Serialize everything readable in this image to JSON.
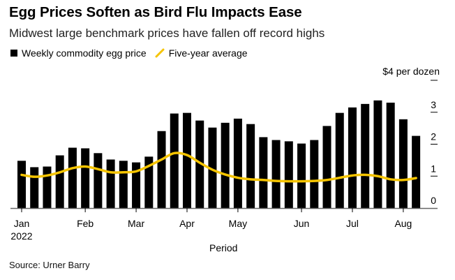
{
  "title": "Egg Prices Soften as Bird Flu Impacts Ease",
  "subtitle": "Midwest large benchmark prices have fallen off record highs",
  "legend": [
    {
      "label": "Weekly commodity egg price",
      "icon": "square-swatch",
      "color": "#000000"
    },
    {
      "label": "Five-year average",
      "icon": "line-swatch",
      "color": "#F5C400"
    }
  ],
  "unit_label": "$4 per dozen",
  "source": "Source: Urner Barry",
  "colors": {
    "bars": "#000000",
    "average_line": "#F5C400",
    "axis": "#666666"
  },
  "chart_data": {
    "type": "bar",
    "title": "Egg Prices Soften as Bird Flu Impacts Ease",
    "subtitle": "Midwest large benchmark prices have fallen off record highs",
    "xlabel": "Period",
    "ylabel": "$ per dozen",
    "ylim": [
      0,
      4
    ],
    "yticks": [
      0,
      1,
      2,
      3,
      4
    ],
    "ytick_labels": [
      "0",
      "1",
      "2",
      "3",
      "$4 per dozen"
    ],
    "x_ticks": [
      {
        "week_index": 0,
        "label": "Jan",
        "sublabel": "2022"
      },
      {
        "week_index": 5,
        "label": "Feb"
      },
      {
        "week_index": 9,
        "label": "Mar"
      },
      {
        "week_index": 13,
        "label": "Apr"
      },
      {
        "week_index": 17,
        "label": "May"
      },
      {
        "week_index": 22,
        "label": "Jun"
      },
      {
        "week_index": 26,
        "label": "Jul"
      },
      {
        "week_index": 30,
        "label": "Aug"
      }
    ],
    "grid": false,
    "legend_position": "top-left",
    "series": [
      {
        "name": "Weekly commodity egg price",
        "type": "bar",
        "values": [
          1.48,
          1.28,
          1.3,
          1.65,
          1.89,
          1.87,
          1.72,
          1.52,
          1.48,
          1.43,
          1.61,
          2.41,
          2.96,
          2.98,
          2.74,
          2.52,
          2.67,
          2.8,
          2.63,
          2.22,
          2.13,
          2.09,
          2.02,
          2.13,
          2.57,
          2.98,
          3.15,
          3.26,
          3.37,
          3.3,
          2.78,
          2.26
        ]
      },
      {
        "name": "Five-year average",
        "type": "line",
        "values": [
          1.04,
          0.98,
          1.02,
          1.12,
          1.25,
          1.3,
          1.22,
          1.12,
          1.12,
          1.15,
          1.32,
          1.52,
          1.72,
          1.66,
          1.42,
          1.2,
          1.05,
          0.95,
          0.9,
          0.88,
          0.85,
          0.84,
          0.84,
          0.85,
          0.88,
          0.95,
          1.02,
          1.04,
          1.0,
          0.9,
          0.88,
          0.94
        ]
      }
    ]
  }
}
